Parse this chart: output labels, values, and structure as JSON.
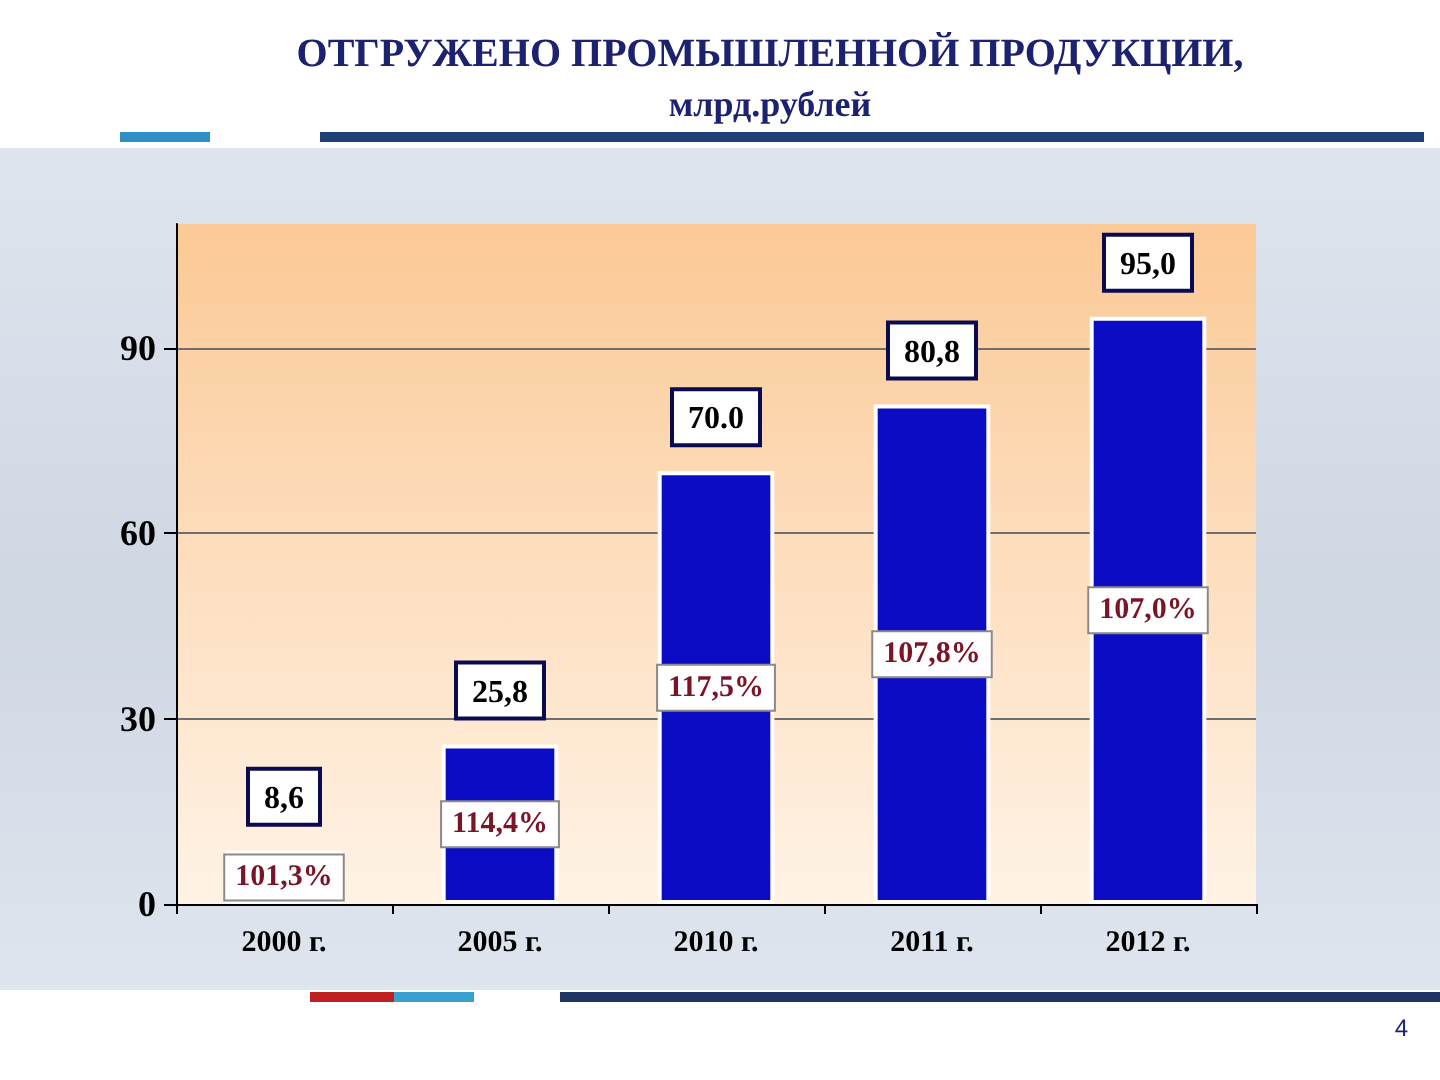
{
  "chart_data": {
    "type": "bar",
    "title": "ОТГРУЖЕНО ПРОМЫШЛЕННОЙ ПРОДУКЦИИ,",
    "subtitle": "млрд.рублей",
    "categories": [
      "2000 г.",
      "2005 г.",
      "2010 г.",
      "2011 г.",
      "2012 г."
    ],
    "values": [
      8.6,
      25.8,
      70,
      80.8,
      95
    ],
    "value_labels": [
      "8,6",
      "25,8",
      "70.0",
      "80,8",
      "95,0"
    ],
    "color": "#0c0cc4",
    "ylim": [
      0,
      110
    ],
    "yticks": [
      0,
      30,
      60,
      90
    ],
    "grid": "y",
    "annotations": [
      "101,3%",
      "114,4%",
      "117,5%",
      "107,8%",
      "107,0%",
      "4"
    ]
  }
}
